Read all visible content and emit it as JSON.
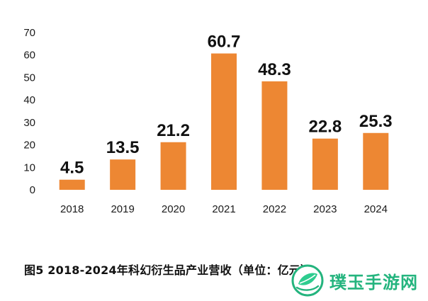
{
  "chart_data": {
    "type": "bar",
    "categories": [
      "2018",
      "2019",
      "2020",
      "2021",
      "2022",
      "2023",
      "2024"
    ],
    "values": [
      4.5,
      13.5,
      21.2,
      60.7,
      48.3,
      22.8,
      25.3
    ],
    "data_labels": [
      "4.5",
      "13.5",
      "21.2",
      "60.7",
      "48.3",
      "22.8",
      "25.3"
    ],
    "yticks": [
      0,
      10,
      20,
      30,
      40,
      50,
      60,
      70
    ],
    "ylim": [
      0,
      70
    ],
    "grid": false,
    "legend": "none",
    "bar_color": "#ed8733",
    "title": "图5  2018-2024年科幻衍生品产业营收（单位：亿元）",
    "xlabel": "",
    "ylabel": ""
  },
  "watermark": {
    "text": "璞玉手游网",
    "icon": "leaf-ring-logo-icon",
    "color": "#24b47e"
  }
}
